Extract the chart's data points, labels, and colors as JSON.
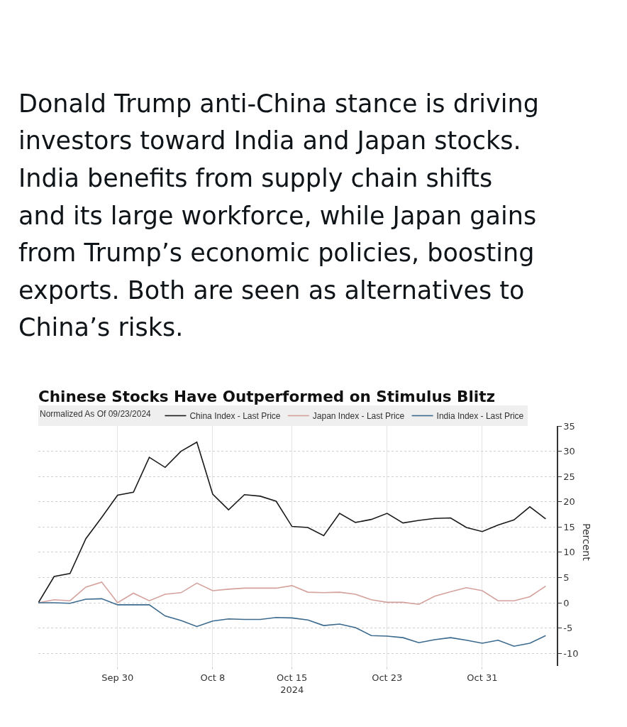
{
  "chart_data": {
    "type": "line",
    "title": "Chinese Stocks Have Outperformed on Stimulus Blitz",
    "legend_title": "Normalized As Of 09/23/2024",
    "ylabel": "Percent",
    "annotations": [
      "Donald Trump anti-China stance is driving investors toward India and Japan stocks. India benefits from supply chain shifts and its large workforce, while Japan gains from Trump’s economic policies, boosting exports. Both are seen as alternatives to China’s risks."
    ],
    "categories": [
      null,
      null,
      null,
      null,
      null,
      "Sep 30",
      null,
      null,
      null,
      null,
      null,
      "Oct 8",
      null,
      null,
      null,
      null,
      "Oct 15\n2024",
      null,
      null,
      null,
      null,
      null,
      "Oct 23",
      null,
      null,
      null,
      null,
      null,
      "Oct 31",
      null,
      null,
      null,
      null
    ],
    "series": [
      {
        "name": "China Index - Last Price",
        "color": "#1a1a1a",
        "values": [
          0,
          5.2,
          5.8,
          12.7,
          16.9,
          21.3,
          21.9,
          28.8,
          26.8,
          30.0,
          31.8,
          21.5,
          18.4,
          21.4,
          21.1,
          20.1,
          15.1,
          14.9,
          13.3,
          17.7,
          15.9,
          16.5,
          17.7,
          15.8,
          16.3,
          16.7,
          16.8,
          14.9,
          14.1,
          15.4,
          16.4,
          19.0,
          16.6
        ]
      },
      {
        "name": "Japan Index - Last Price",
        "color": "#d4a19c",
        "values": [
          0,
          0.6,
          0.4,
          3.1,
          4.1,
          0.0,
          1.9,
          0.4,
          1.7,
          2.0,
          3.9,
          2.4,
          2.7,
          2.9,
          2.9,
          2.9,
          3.4,
          2.1,
          2.0,
          2.1,
          1.7,
          0.6,
          0.1,
          0.1,
          -0.3,
          1.3,
          2.2,
          3.0,
          2.4,
          0.4,
          0.4,
          1.2,
          3.3
        ]
      },
      {
        "name": "India Index - Last Price",
        "color": "#3b6a8e",
        "values": [
          0,
          0.0,
          -0.1,
          0.7,
          0.8,
          -0.4,
          -0.4,
          -0.4,
          -2.6,
          -3.5,
          -4.7,
          -3.6,
          -3.2,
          -3.3,
          -3.3,
          -2.9,
          -3.0,
          -3.4,
          -4.5,
          -4.2,
          -4.9,
          -6.5,
          -6.6,
          -6.9,
          -7.9,
          -7.3,
          -6.9,
          -7.4,
          -8.0,
          -7.4,
          -8.6,
          -8.0,
          -6.5
        ]
      }
    ],
    "ylim": [
      -12.5,
      35
    ],
    "yticks": [
      -10,
      -5,
      0,
      5,
      10,
      15,
      20,
      25,
      30,
      35
    ],
    "grid": true,
    "legend": "top",
    "line_style": "solid"
  }
}
